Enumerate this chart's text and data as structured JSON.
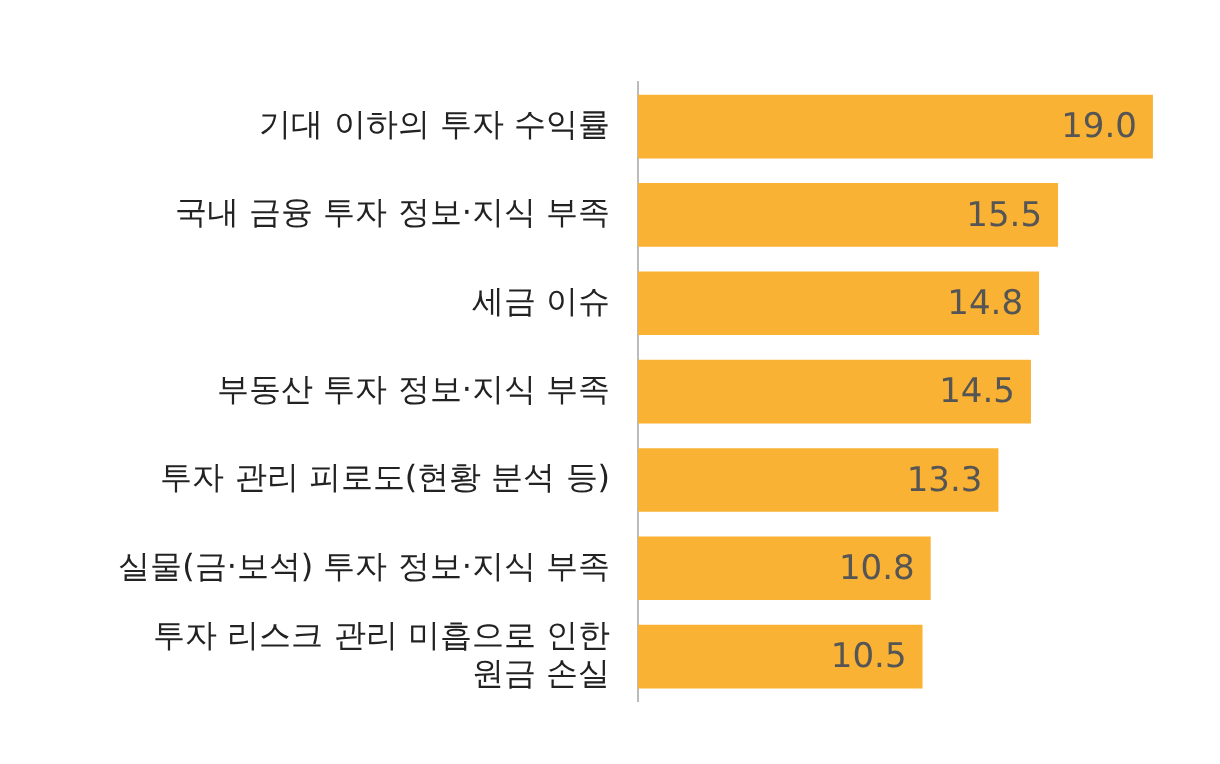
{
  "chart_data": {
    "type": "bar",
    "orientation": "horizontal",
    "categories": [
      "기대 이하의 투자 수익률",
      "국내 금융 투자 정보·지식 부족",
      "세금 이슈",
      "부동산 투자 정보·지식 부족",
      "투자 관리 피로도(현황 분석 등)",
      "실물(금·보석) 투자 정보·지식 부족",
      "투자 리스크 관리 미흡으로 인한\n원금 손실"
    ],
    "values": [
      19.0,
      15.5,
      14.8,
      14.5,
      13.3,
      10.8,
      10.5
    ],
    "value_labels": [
      "19.0",
      "15.5",
      "14.8",
      "14.5",
      "13.3",
      "10.8",
      "10.5"
    ],
    "color": "#f9b233",
    "tick_labels": "y",
    "grid": false,
    "legend": false
  }
}
